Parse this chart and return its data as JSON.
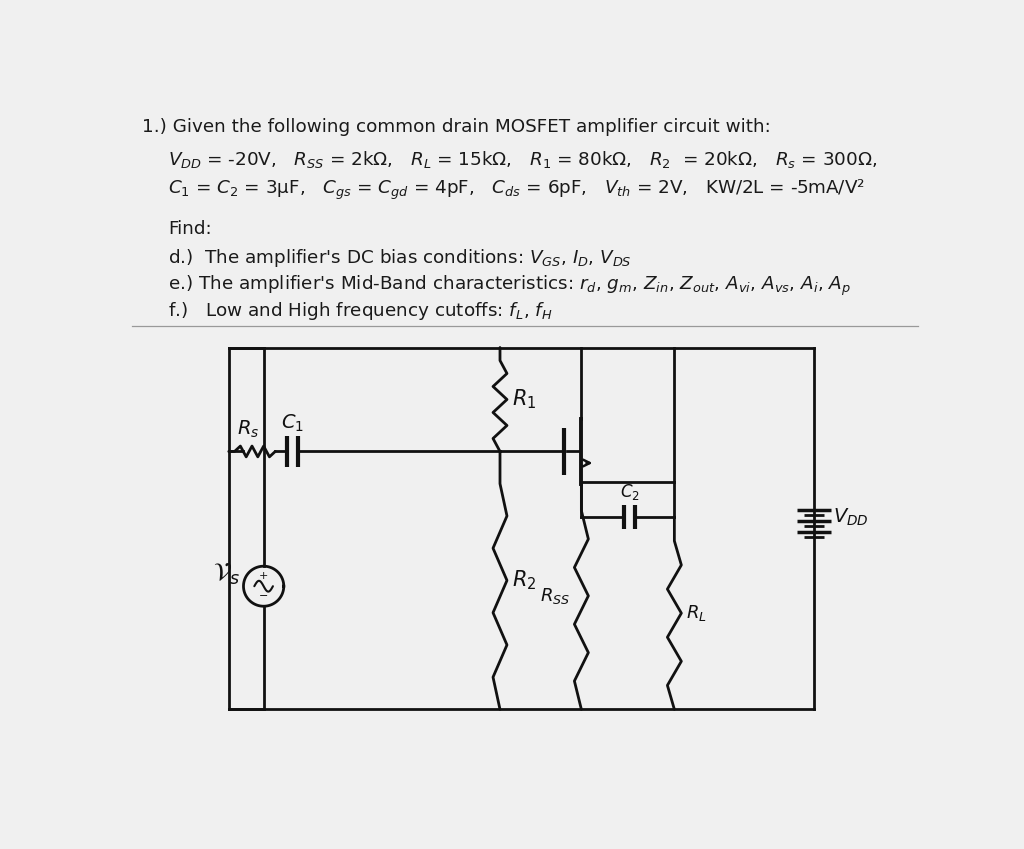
{
  "background_color": "#f0f0f0",
  "text_color": "#1a1a1a",
  "circuit_color": "#111111",
  "title_line": "1.) Given the following common drain MOSFET amplifier circuit with:",
  "param_line1": "$V_{DD}$ = -20V,   $R_{SS}$ = 2kΩ,   $R_L$ = 15kΩ,   $R_1$ = 80kΩ,   $R_2$  = 20kΩ,   $R_s$ = 300Ω,",
  "param_line2": "$C_1$ = $C_2$ = 3μF,   $C_{gs}$ = $C_{gd}$ = 4pF,   $C_{ds}$ = 6pF,   $V_{th}$ = 2V,   KW/2L = -5mA/V²",
  "find_label": "Find:",
  "find_d": "d.)  The amplifier’s DC bias conditions: $V_{GS}$, $I_D$, $V_{DS}$",
  "find_e": "e.) The amplifier’s Mid-Band characteristics: $r_d$, $g_m$, $Z_{in}$, $Z_{out}$, $A_{vi}$, $A_{vs}$, $A_i$, $A_p$",
  "find_f": "f.)   Low and High frequency cutoffs: $f_L$, $f_H$",
  "lw": 2.0,
  "zw": 0.09,
  "n_zigzag": 6
}
